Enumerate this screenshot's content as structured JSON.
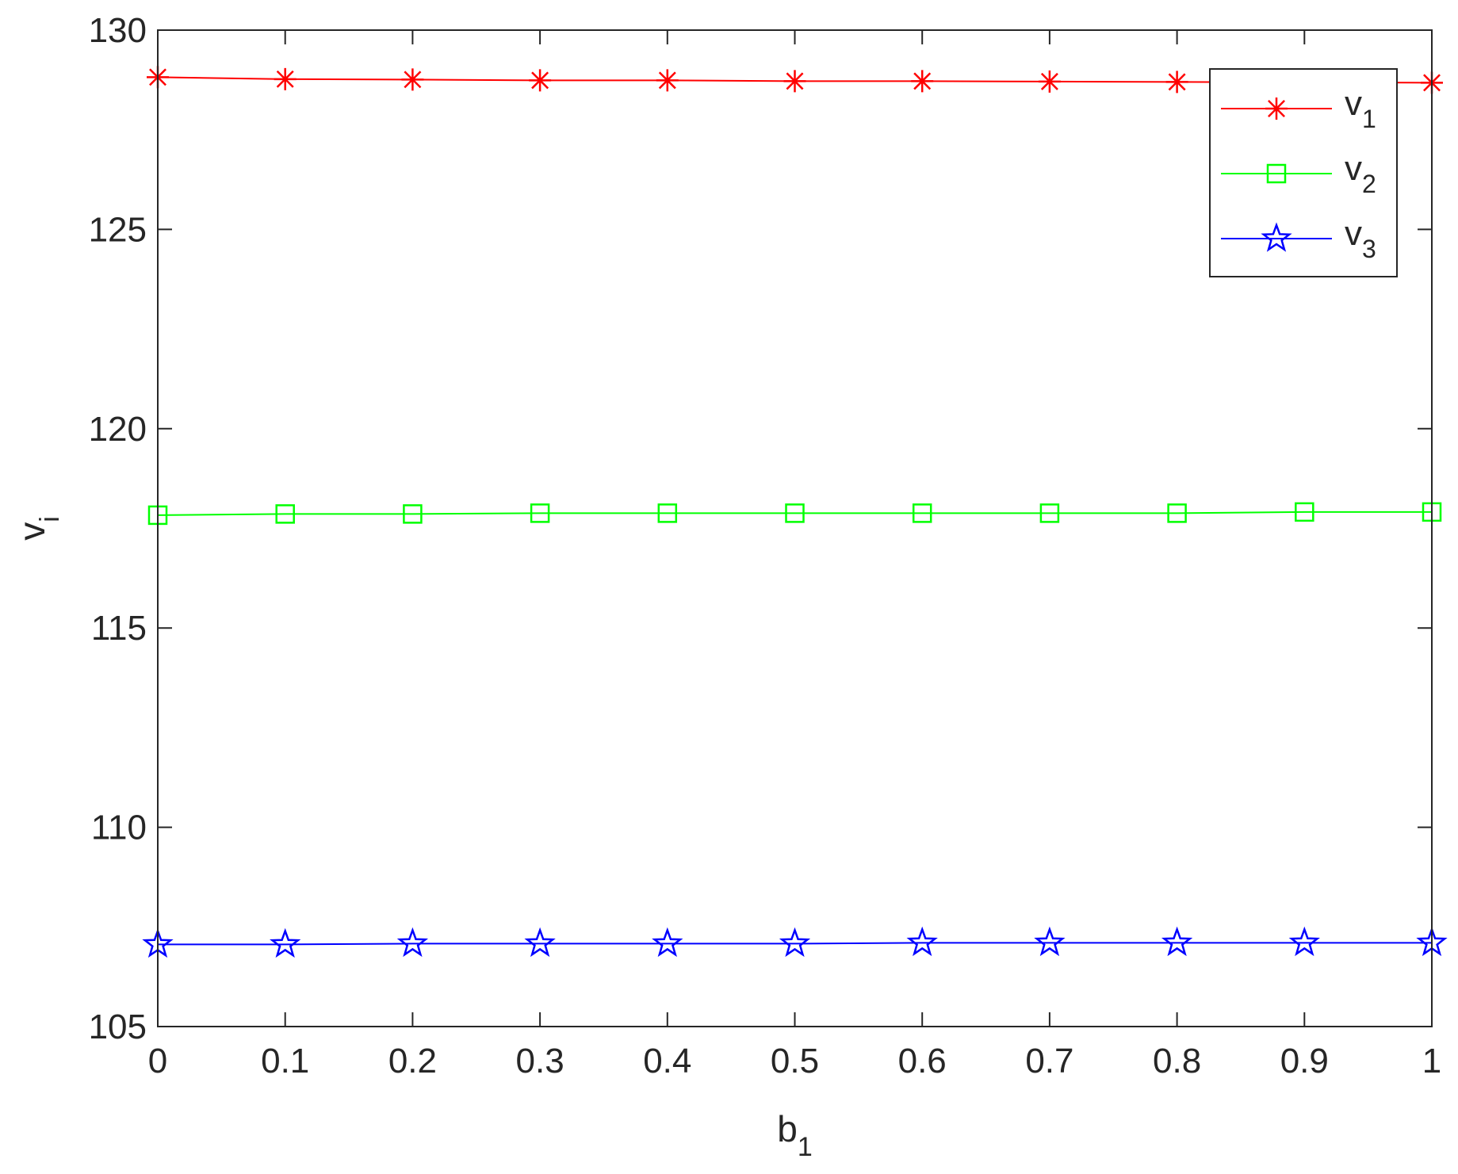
{
  "chart_data": {
    "type": "line",
    "xlabel": {
      "base": "b",
      "sub": "1"
    },
    "ylabel": {
      "base": "v",
      "sub": "i"
    },
    "xlim": [
      0,
      1
    ],
    "ylim": [
      105,
      130
    ],
    "xticks": [
      0,
      0.1,
      0.2,
      0.3,
      0.4,
      0.5,
      0.6,
      0.7,
      0.8,
      0.9,
      1
    ],
    "xtick_labels": [
      "0",
      "0.1",
      "0.2",
      "0.3",
      "0.4",
      "0.5",
      "0.6",
      "0.7",
      "0.8",
      "0.9",
      "1"
    ],
    "yticks": [
      105,
      110,
      115,
      120,
      125,
      130
    ],
    "ytick_labels": [
      "105",
      "110",
      "115",
      "120",
      "125",
      "130"
    ],
    "grid": false,
    "legend_position": "top-right",
    "x": [
      0,
      0.1,
      0.2,
      0.3,
      0.4,
      0.5,
      0.6,
      0.7,
      0.8,
      0.9,
      1
    ],
    "series": [
      {
        "name": "v1",
        "label_base": "v",
        "label_sub": "1",
        "color": "#ff0000",
        "marker": "asterisk",
        "values": [
          128.82,
          128.77,
          128.76,
          128.74,
          128.74,
          128.72,
          128.72,
          128.71,
          128.7,
          128.69,
          128.68
        ]
      },
      {
        "name": "v2",
        "label_base": "v",
        "label_sub": "2",
        "color": "#00ff00",
        "marker": "square",
        "values": [
          117.83,
          117.86,
          117.86,
          117.88,
          117.88,
          117.88,
          117.88,
          117.88,
          117.88,
          117.91,
          117.91
        ]
      },
      {
        "name": "v3",
        "label_base": "v",
        "label_sub": "3",
        "color": "#0000ff",
        "marker": "pentagram",
        "values": [
          107.06,
          107.06,
          107.08,
          107.08,
          107.08,
          107.08,
          107.1,
          107.1,
          107.1,
          107.1,
          107.1
        ]
      }
    ]
  }
}
